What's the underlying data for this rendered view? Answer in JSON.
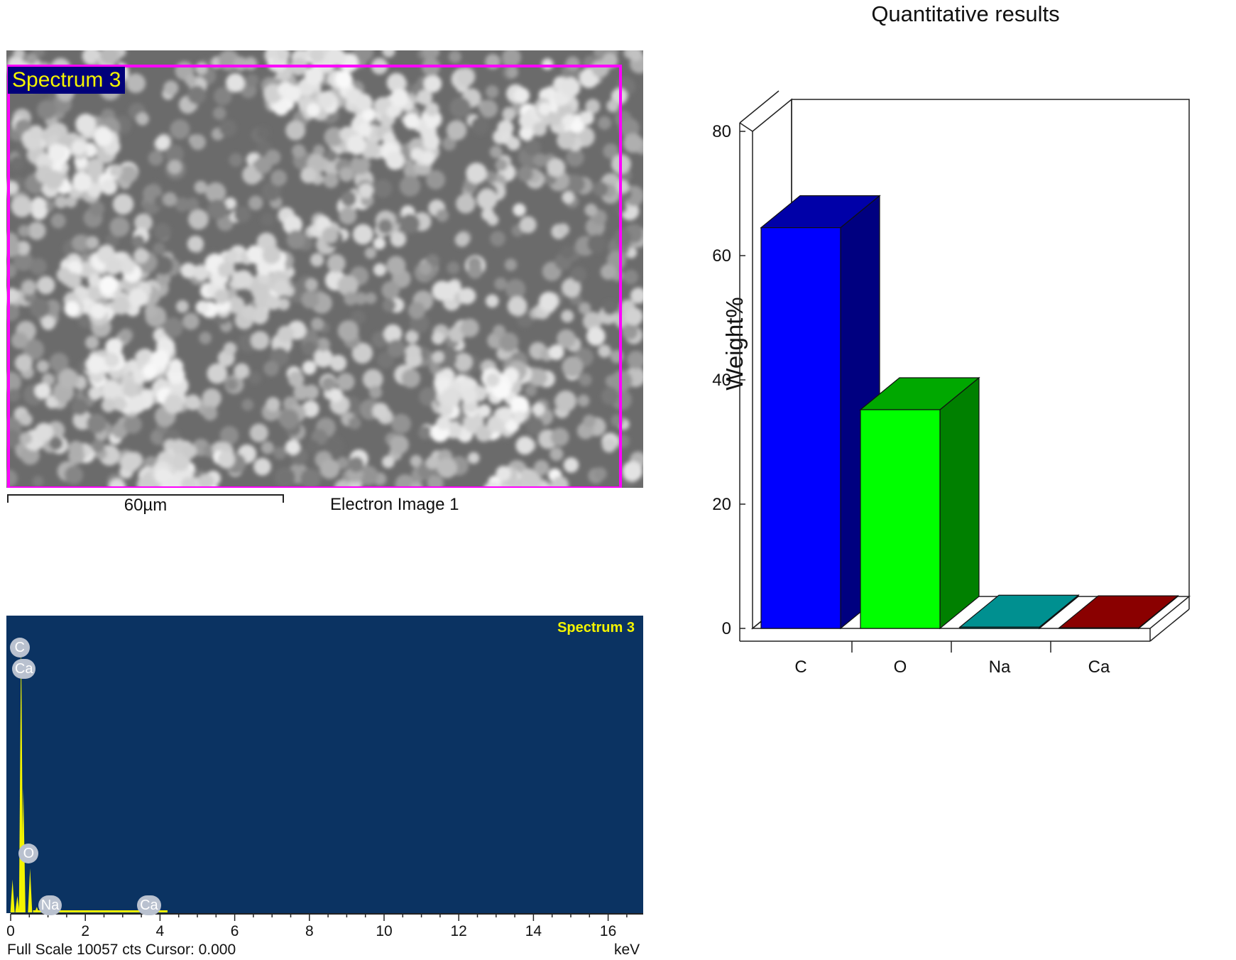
{
  "sem_panel": {
    "roi_label": "Spectrum 3",
    "scale_bar_label": "60µm",
    "caption": "Electron Image 1"
  },
  "spectrum_panel": {
    "name": "Spectrum 3",
    "footer": "Full Scale 10057 cts Cursor: 0.000",
    "x_unit": "keV",
    "x_ticks": [
      "0",
      "2",
      "4",
      "6",
      "8",
      "10",
      "12",
      "14",
      "16"
    ],
    "peak_labels": [
      {
        "text": "C",
        "kev": 0.28
      },
      {
        "text": "Ca",
        "kev": 0.34
      },
      {
        "text": "O",
        "kev": 0.52
      },
      {
        "text": "Na",
        "kev": 1.04
      },
      {
        "text": "Ca",
        "kev": 3.69
      }
    ],
    "colors": {
      "background": "#0b3362",
      "trace": "#f4f400",
      "tag": "#b9c1cf"
    }
  },
  "chart_data": {
    "type": "bar",
    "title": "Quantitative results",
    "xlabel": "",
    "ylabel": "Weight%",
    "categories": [
      "C",
      "O",
      "Na",
      "Ca"
    ],
    "values": [
      64.5,
      35.2,
      0.2,
      0.1
    ],
    "ylim": [
      0,
      80
    ],
    "yticks": [
      "0",
      "20",
      "40",
      "60",
      "80"
    ],
    "style": "3d",
    "colors": [
      {
        "front": "#0000ff",
        "side": "#000080",
        "top": "#0000a8"
      },
      {
        "front": "#00ff00",
        "side": "#008000",
        "top": "#00a800"
      },
      {
        "front": "#008080",
        "side": "#005858",
        "top": "#009090"
      },
      {
        "front": "#800000",
        "side": "#500000",
        "top": "#8a0000"
      }
    ],
    "grid": false
  }
}
